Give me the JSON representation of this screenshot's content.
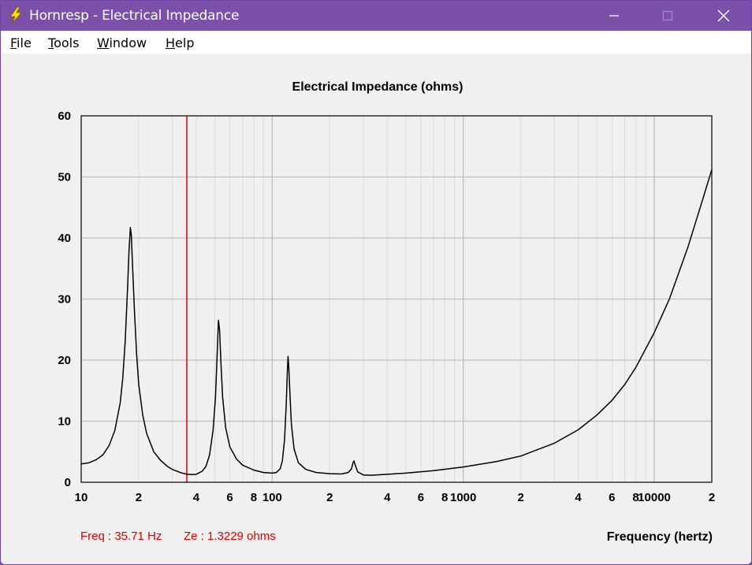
{
  "window": {
    "title": "Hornresp - Electrical Impedance",
    "icon": "lightning-bolt-icon",
    "controls": [
      "minimize-icon",
      "maximize-icon",
      "close-icon"
    ]
  },
  "menu": [
    {
      "label": "File",
      "underline": "F",
      "rest": "ile"
    },
    {
      "label": "Tools",
      "underline": "T",
      "rest": "ools"
    },
    {
      "label": "Window",
      "underline": "W",
      "rest": "indow"
    },
    {
      "label": "Help",
      "underline": "H",
      "rest": "elp"
    }
  ],
  "colors": {
    "titlebar": "#7a50ab",
    "curve": "#000000",
    "cursor": "#e00000",
    "readout": "#e00000",
    "grid_major": "#c0c0c0",
    "grid_minor": "#dcdcdc"
  },
  "readout": {
    "freq": "Freq : 35.71 Hz",
    "ze": "Ze : 1.3229 ohms"
  },
  "chart_data": {
    "type": "line",
    "title": "Electrical Impedance (ohms)",
    "xlabel": "Frequency (hertz)",
    "ylabel": "",
    "x_scale": "log",
    "xlim": [
      10,
      20000
    ],
    "ylim": [
      0,
      60
    ],
    "grid": true,
    "y_ticks": [
      0,
      10,
      20,
      30,
      40,
      50,
      60
    ],
    "x_tick_labels": [
      {
        "value": 10,
        "label": "10"
      },
      {
        "value": 20,
        "label": "2"
      },
      {
        "value": 40,
        "label": "4"
      },
      {
        "value": 60,
        "label": "6"
      },
      {
        "value": 80,
        "label": "8"
      },
      {
        "value": 100,
        "label": "100"
      },
      {
        "value": 200,
        "label": "2"
      },
      {
        "value": 400,
        "label": "4"
      },
      {
        "value": 600,
        "label": "6"
      },
      {
        "value": 800,
        "label": "8"
      },
      {
        "value": 1000,
        "label": "1000"
      },
      {
        "value": 2000,
        "label": "2"
      },
      {
        "value": 4000,
        "label": "4"
      },
      {
        "value": 6000,
        "label": "6"
      },
      {
        "value": 8000,
        "label": "8"
      },
      {
        "value": 10000,
        "label": "10000"
      },
      {
        "value": 20000,
        "label": "2"
      }
    ],
    "cursor_x": 35.71,
    "series": [
      {
        "values": [
          [
            10,
            3.0
          ],
          [
            11,
            3.2
          ],
          [
            12,
            3.7
          ],
          [
            13,
            4.5
          ],
          [
            14,
            6.0
          ],
          [
            15,
            8.5
          ],
          [
            16,
            13.0
          ],
          [
            16.5,
            17.0
          ],
          [
            17,
            23.0
          ],
          [
            17.5,
            32.0
          ],
          [
            17.8,
            38.0
          ],
          [
            18.1,
            41.7
          ],
          [
            18.3,
            40.5
          ],
          [
            18.6,
            35.0
          ],
          [
            19,
            28.0
          ],
          [
            19.5,
            21.0
          ],
          [
            20,
            16.0
          ],
          [
            21,
            11.0
          ],
          [
            22,
            8.0
          ],
          [
            24,
            5.0
          ],
          [
            26,
            3.6
          ],
          [
            28,
            2.7
          ],
          [
            30,
            2.1
          ],
          [
            33,
            1.6
          ],
          [
            35.71,
            1.32
          ],
          [
            38,
            1.25
          ],
          [
            40,
            1.3
          ],
          [
            43,
            1.8
          ],
          [
            45,
            2.6
          ],
          [
            47,
            4.5
          ],
          [
            49,
            8.5
          ],
          [
            50.5,
            14.0
          ],
          [
            51.5,
            21.0
          ],
          [
            52.3,
            26.5
          ],
          [
            53,
            25.0
          ],
          [
            54,
            19.0
          ],
          [
            55,
            14.0
          ],
          [
            57,
            9.0
          ],
          [
            60,
            5.8
          ],
          [
            65,
            3.8
          ],
          [
            70,
            2.8
          ],
          [
            80,
            2.0
          ],
          [
            90,
            1.6
          ],
          [
            100,
            1.5
          ],
          [
            105,
            1.6
          ],
          [
            110,
            2.2
          ],
          [
            113,
            3.5
          ],
          [
            116,
            7.0
          ],
          [
            118.5,
            13.0
          ],
          [
            120,
            18.0
          ],
          [
            121,
            20.6
          ],
          [
            122,
            19.0
          ],
          [
            124,
            14.0
          ],
          [
            126,
            9.5
          ],
          [
            130,
            5.5
          ],
          [
            137,
            3.2
          ],
          [
            150,
            2.1
          ],
          [
            170,
            1.6
          ],
          [
            200,
            1.4
          ],
          [
            230,
            1.35
          ],
          [
            250,
            1.6
          ],
          [
            260,
            2.2
          ],
          [
            265,
            3.2
          ],
          [
            268,
            3.5
          ],
          [
            272,
            2.8
          ],
          [
            280,
            1.7
          ],
          [
            300,
            1.2
          ],
          [
            330,
            1.15
          ],
          [
            400,
            1.3
          ],
          [
            500,
            1.5
          ],
          [
            700,
            1.9
          ],
          [
            1000,
            2.5
          ],
          [
            1500,
            3.4
          ],
          [
            2000,
            4.3
          ],
          [
            3000,
            6.4
          ],
          [
            4000,
            8.6
          ],
          [
            5000,
            11.0
          ],
          [
            6000,
            13.4
          ],
          [
            7000,
            16.0
          ],
          [
            8000,
            18.8
          ],
          [
            10000,
            24.5
          ],
          [
            12000,
            30.0
          ],
          [
            15000,
            38.5
          ],
          [
            18000,
            46.5
          ],
          [
            20000,
            51.2
          ]
        ]
      }
    ]
  }
}
